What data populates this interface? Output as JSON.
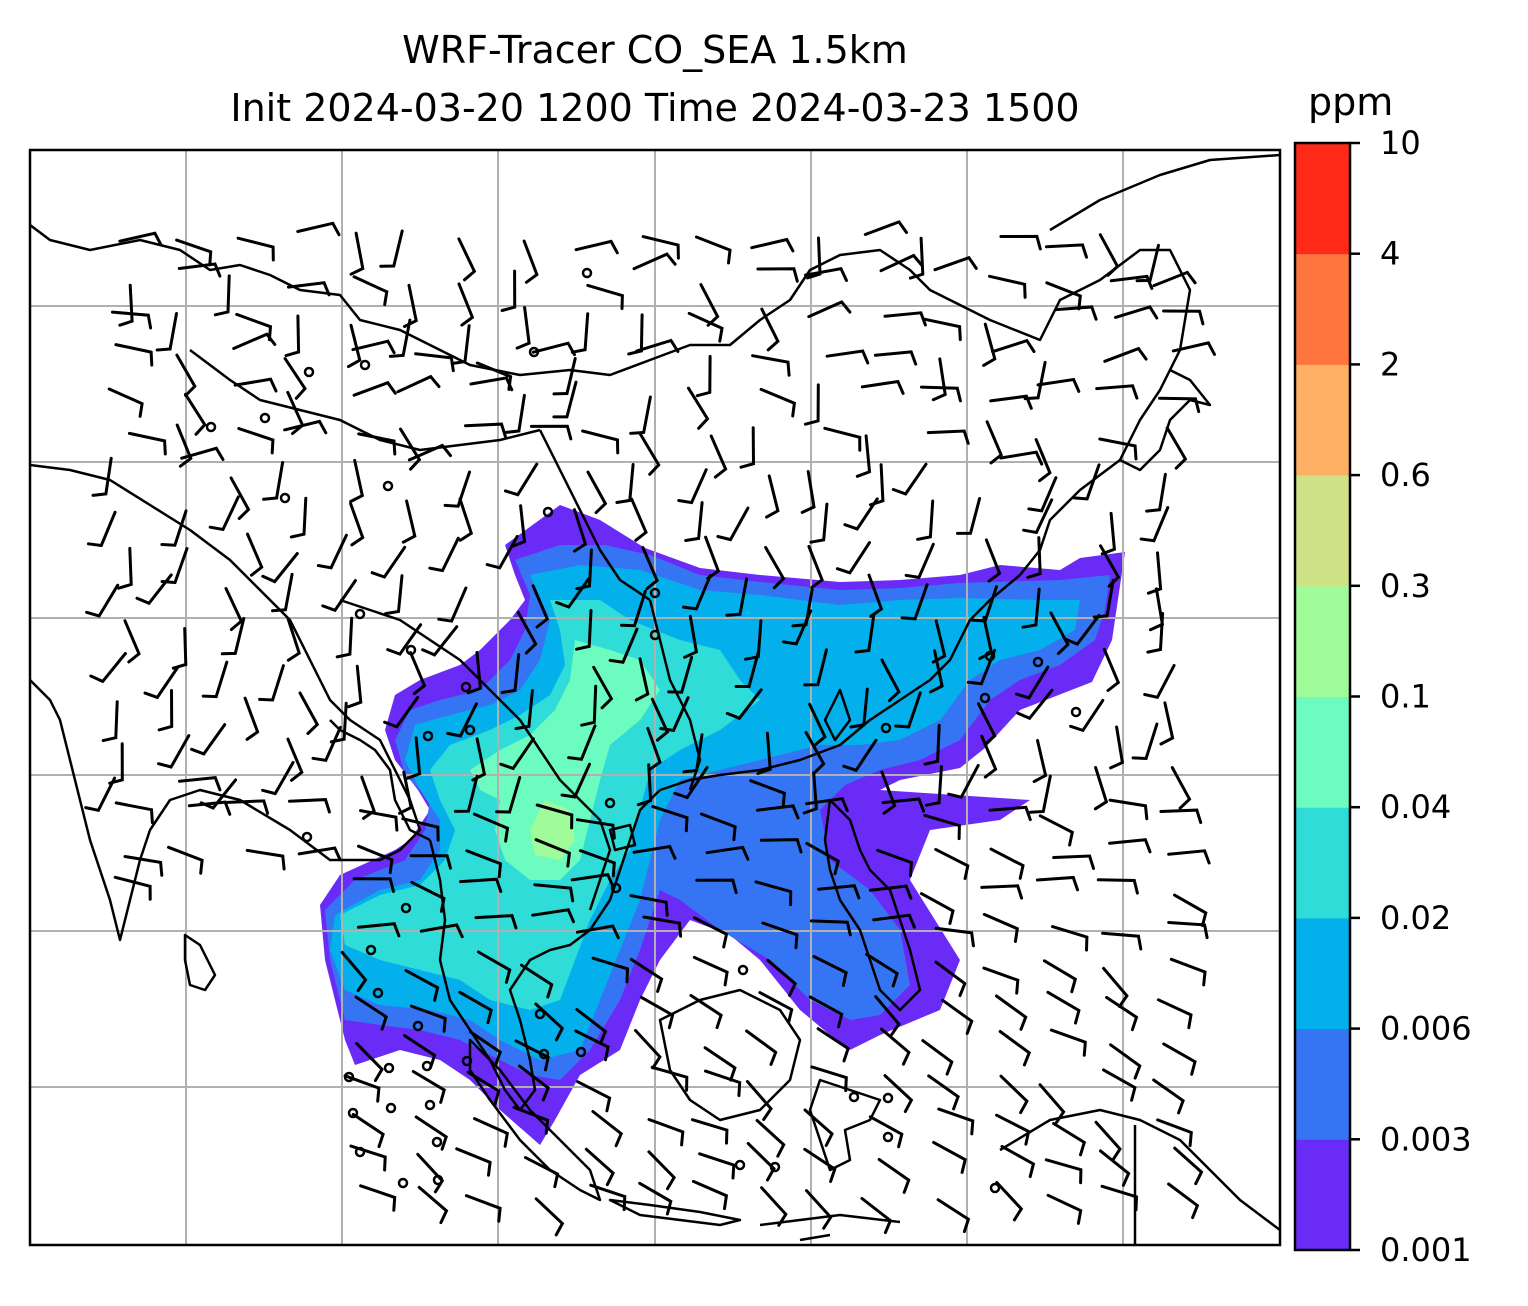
{
  "title_line1": "WRF-Tracer CO_SEA 1.5km",
  "title_line2": "Init 2024-03-20 1200 Time 2024-03-23 1500",
  "colorbar": {
    "unit": "ppm",
    "levels": [
      "0.001",
      "0.003",
      "0.006",
      "0.02",
      "0.04",
      "0.1",
      "0.3",
      "0.6",
      "2",
      "4",
      "10"
    ],
    "colors": [
      "#6a2bf7",
      "#3575f3",
      "#03b0ec",
      "#2fdcd8",
      "#6cfcbf",
      "#9ffc99",
      "#d0e287",
      "#feb064",
      "#ff7540",
      "#ff2b18"
    ]
  },
  "map": {
    "coastline_color": "#000000",
    "grid_color": "#b0b0b0",
    "calm_wind_symbol": "circle"
  }
}
